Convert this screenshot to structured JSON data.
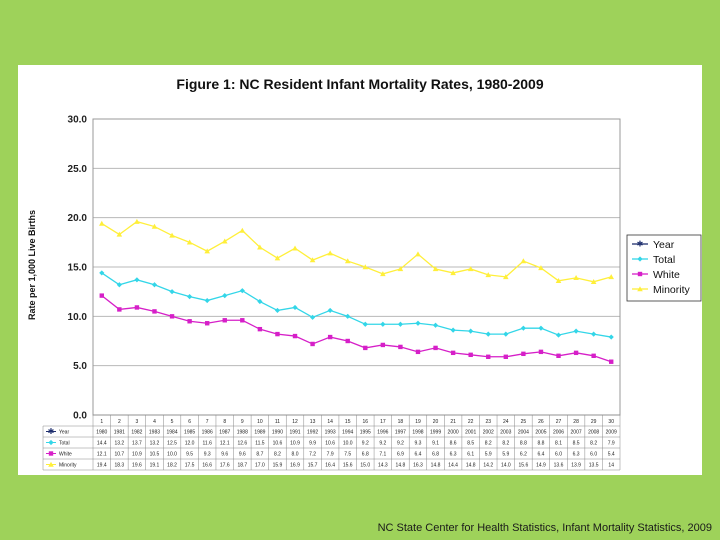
{
  "credit": "NC State Center for Health Statistics, Infant Mortality Statistics, 2009",
  "chart_data": {
    "type": "line",
    "title": "Figure 1: NC Resident Infant Mortality Rates, 1980-2009",
    "xlabel": "",
    "ylabel": "Rate per 1,000 Live Births",
    "ylim": [
      0,
      30
    ],
    "y_ticks": [
      "0.0",
      "5.0",
      "10.0",
      "15.0",
      "20.0",
      "25.0",
      "30.0"
    ],
    "grid": true,
    "legend_position": "right",
    "categories": [
      "1",
      "2",
      "3",
      "4",
      "5",
      "6",
      "7",
      "8",
      "9",
      "10",
      "11",
      "12",
      "13",
      "14",
      "15",
      "16",
      "17",
      "18",
      "19",
      "20",
      "21",
      "22",
      "23",
      "24",
      "25",
      "26",
      "27",
      "28",
      "29",
      "30"
    ],
    "years": [
      "1980",
      "1981",
      "1982",
      "1983",
      "1984",
      "1985",
      "1986",
      "1987",
      "1988",
      "1989",
      "1990",
      "1991",
      "1992",
      "1993",
      "1994",
      "1995",
      "1996",
      "1997",
      "1998",
      "1999",
      "2000",
      "2001",
      "2002",
      "2003",
      "2004",
      "2005",
      "2006",
      "2007",
      "2008",
      "2009"
    ],
    "series": [
      {
        "name": "Year",
        "color": "#1f2f6e",
        "marker": "star",
        "plotted": false,
        "labels": [
          "1980",
          "1981",
          "1982",
          "1983",
          "1984",
          "1985",
          "1986",
          "1987",
          "1988",
          "1989",
          "1990",
          "1991",
          "1992",
          "1993",
          "1994",
          "1995",
          "1996",
          "1997",
          "1998",
          "1999",
          "2000",
          "2001",
          "2002",
          "2003",
          "2004",
          "2005",
          "2006",
          "2007",
          "2008",
          "2009"
        ]
      },
      {
        "name": "Total",
        "color": "#33d6e8",
        "marker": "diamond",
        "plotted": true,
        "values": [
          14.4,
          13.2,
          13.7,
          13.2,
          12.5,
          12.0,
          11.6,
          12.1,
          12.6,
          11.5,
          10.6,
          10.9,
          9.9,
          10.6,
          10.0,
          9.2,
          9.2,
          9.2,
          9.3,
          9.1,
          8.6,
          8.5,
          8.2,
          8.2,
          8.8,
          8.8,
          8.1,
          8.5,
          8.2,
          7.9
        ],
        "labels": [
          "14.4",
          "13.2",
          "13.7",
          "13.2",
          "12.5",
          "12.0",
          "11.6",
          "12.1",
          "12.6",
          "11.5",
          "10.6",
          "10.9",
          "9.9",
          "10.6",
          "10.0",
          "9.2",
          "9.2",
          "9.2",
          "9.3",
          "9.1",
          "8.6",
          "8.5",
          "8.2",
          "8.2",
          "8.8",
          "8.8",
          "8.1",
          "8.5",
          "8.2",
          "7.9"
        ]
      },
      {
        "name": "White",
        "color": "#d61fc8",
        "marker": "square",
        "plotted": true,
        "values": [
          12.1,
          10.7,
          10.9,
          10.5,
          10.0,
          9.5,
          9.3,
          9.6,
          9.6,
          8.7,
          8.2,
          8.0,
          7.2,
          7.9,
          7.5,
          6.8,
          7.1,
          6.9,
          6.4,
          6.8,
          6.3,
          6.1,
          5.9,
          5.9,
          6.2,
          6.4,
          6.0,
          6.3,
          6.0,
          5.4
        ],
        "labels": [
          "12.1",
          "10.7",
          "10.9",
          "10.5",
          "10.0",
          "9.5",
          "9.3",
          "9.6",
          "9.6",
          "8.7",
          "8.2",
          "8.0",
          "7.2",
          "7.9",
          "7.5",
          "6.8",
          "7.1",
          "6.9",
          "6.4",
          "6.8",
          "6.3",
          "6.1",
          "5.9",
          "5.9",
          "6.2",
          "6.4",
          "6.0",
          "6.3",
          "6.0",
          "5.4"
        ]
      },
      {
        "name": "Minority",
        "color": "#ffef3a",
        "marker": "triangle",
        "plotted": true,
        "values": [
          19.4,
          18.3,
          19.6,
          19.1,
          18.2,
          17.5,
          16.6,
          17.6,
          18.7,
          17.0,
          15.9,
          16.9,
          15.7,
          16.4,
          15.6,
          15.0,
          14.3,
          14.8,
          16.3,
          14.8,
          14.4,
          14.8,
          14.2,
          14.0,
          15.6,
          14.9,
          13.6,
          13.9,
          13.5,
          14.0
        ],
        "labels": [
          "19.4",
          "18.3",
          "19.6",
          "19.1",
          "18.2",
          "17.5",
          "16.6",
          "17.6",
          "18.7",
          "17.0",
          "15.9",
          "16.9",
          "15.7",
          "16.4",
          "15.6",
          "15.0",
          "14.3",
          "14.8",
          "16.3",
          "14.8",
          "14.4",
          "14.8",
          "14.2",
          "14.0",
          "15.6",
          "14.9",
          "13.6",
          "13.9",
          "13.5",
          "14"
        ]
      }
    ]
  }
}
